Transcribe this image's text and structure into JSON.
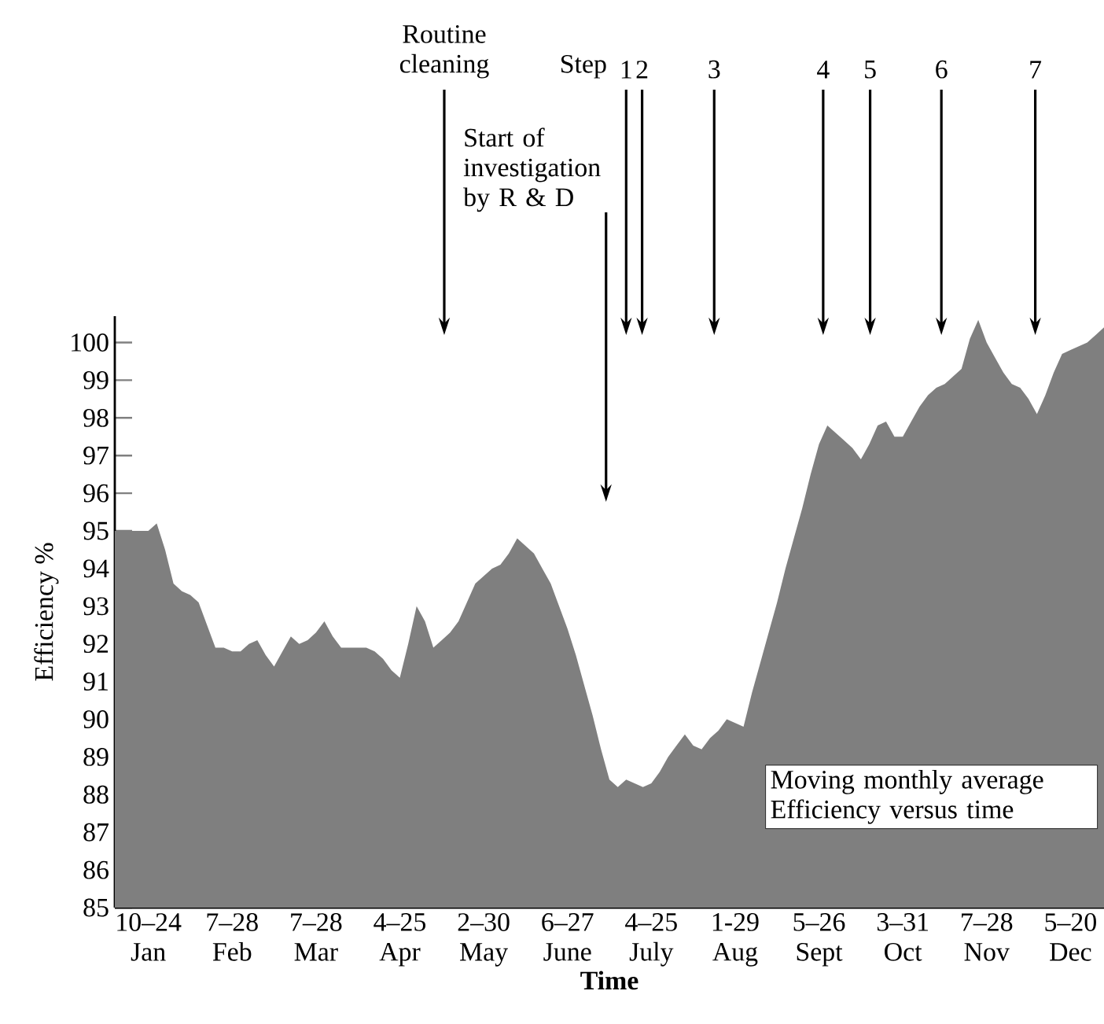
{
  "chart_data": {
    "type": "area",
    "xlabel": "Time",
    "ylabel": "Efficiency %",
    "ylim": [
      85,
      100.7
    ],
    "color": "#7f7f7f",
    "categories": [
      null,
      null,
      null,
      null,
      "10–24 Jan",
      null,
      null,
      null,
      null,
      null,
      null,
      null,
      null,
      null,
      "7–28 Feb",
      null,
      null,
      null,
      null,
      null,
      null,
      null,
      null,
      null,
      "7–28 Mar",
      null,
      null,
      null,
      null,
      null,
      null,
      null,
      null,
      null,
      "4–25 Apr",
      null,
      null,
      null,
      null,
      null,
      null,
      null,
      null,
      null,
      "2–30 May",
      null,
      null,
      null,
      null,
      null,
      null,
      null,
      null,
      null,
      "6–27 June",
      null,
      null,
      null,
      null,
      null,
      null,
      null,
      null,
      null,
      "4–25 July",
      null,
      null,
      null,
      null,
      null,
      null,
      null,
      null,
      null,
      "1-29 Aug",
      null,
      null,
      null,
      null,
      null,
      null,
      null,
      null,
      null,
      "5–26 Sept",
      null,
      null,
      null,
      null,
      null,
      null,
      null,
      null,
      null,
      "3–31 Oct",
      null,
      null,
      null,
      null,
      null,
      null,
      null,
      null,
      null,
      "7–28 Nov",
      null,
      null,
      null,
      null,
      null,
      null,
      null,
      null,
      null,
      "5–20 Dec",
      null,
      null,
      null,
      null
    ],
    "yticks": [
      85,
      86,
      87,
      88,
      89,
      90,
      91,
      92,
      93,
      94,
      95,
      96,
      97,
      98,
      99,
      100
    ],
    "values": [
      95.0,
      95.0,
      95.0,
      95.0,
      95.0,
      95.2,
      94.5,
      93.6,
      93.4,
      93.3,
      93.1,
      92.5,
      91.9,
      91.9,
      91.8,
      91.8,
      92.0,
      92.1,
      91.7,
      91.4,
      91.8,
      92.2,
      92.0,
      92.1,
      92.3,
      92.6,
      92.2,
      91.9,
      91.9,
      91.9,
      91.9,
      91.8,
      91.6,
      91.3,
      91.1,
      92.0,
      93.0,
      92.6,
      91.9,
      92.1,
      92.3,
      92.6,
      93.1,
      93.6,
      93.8,
      94.0,
      94.1,
      94.4,
      94.8,
      94.6,
      94.4,
      94.0,
      93.6,
      93.0,
      92.4,
      91.7,
      90.9,
      90.1,
      89.2,
      88.4,
      88.2,
      88.4,
      88.3,
      88.2,
      88.3,
      88.6,
      89.0,
      89.3,
      89.6,
      89.3,
      89.2,
      89.5,
      89.7,
      90.0,
      89.9,
      89.8,
      90.7,
      91.5,
      92.3,
      93.1,
      94.0,
      94.8,
      95.6,
      96.5,
      97.3,
      97.8,
      97.6,
      97.4,
      97.2,
      96.9,
      97.3,
      97.8,
      97.9,
      97.5,
      97.5,
      97.9,
      98.3,
      98.6,
      98.8,
      98.9,
      99.1,
      99.3,
      100.1,
      100.6,
      100.0,
      99.6,
      99.2,
      98.9,
      98.8,
      98.5,
      98.1,
      98.6,
      99.2,
      99.7,
      99.8,
      99.9,
      100.0,
      100.2,
      100.4
    ],
    "annotations": [
      "Routine cleaning",
      "Start of investigation by R & D",
      "Step",
      "1",
      "2",
      "3",
      "4",
      "5",
      "6",
      "7",
      "Moving monthly average Efficiency versus time"
    ]
  }
}
